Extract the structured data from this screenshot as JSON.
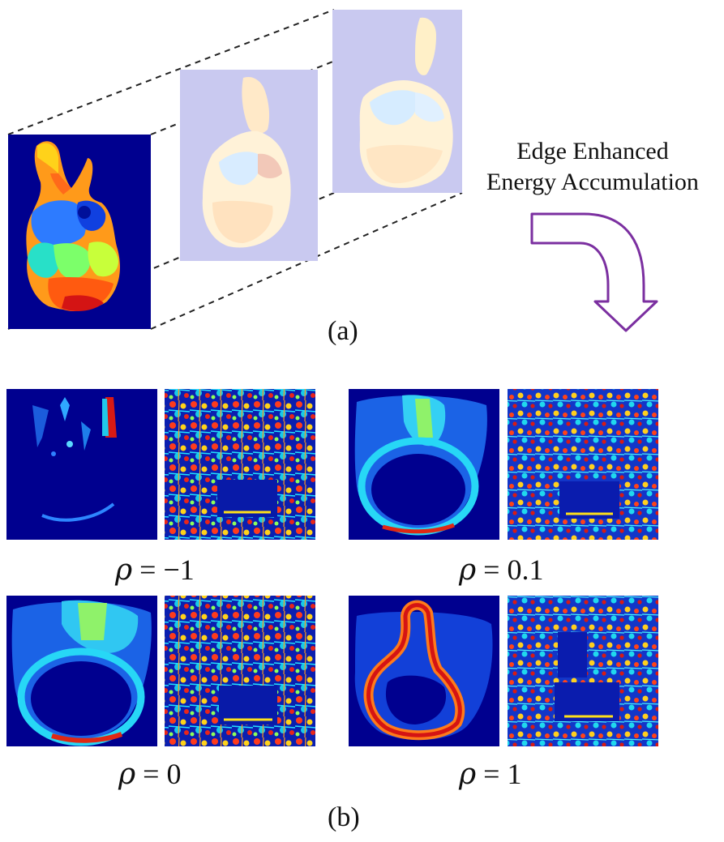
{
  "panel_a": {
    "caption": "(a)",
    "annotation_line1": "Edge Enhanced",
    "annotation_line2": "Energy Accumulation",
    "arrow_color": "#7b2fa0"
  },
  "panel_b": {
    "caption": "(b)",
    "rho_symbol": "ρ",
    "labels": [
      {
        "value": "= −1"
      },
      {
        "value": "= 0.1"
      },
      {
        "value": "= 0"
      },
      {
        "value": "= 1"
      }
    ]
  },
  "colors": {
    "jet_background": "#00008f",
    "overlay_lavender": "#c9c9f0"
  }
}
